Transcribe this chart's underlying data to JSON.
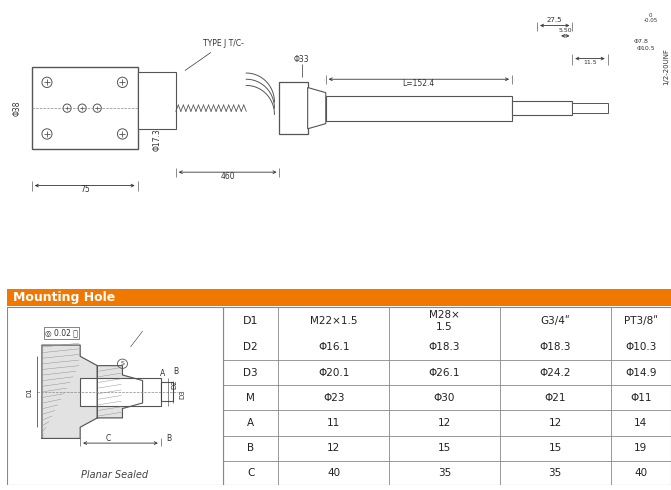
{
  "bg_color": "#ffffff",
  "header_color": "#f07800",
  "header_text": "Mounting Hole",
  "header_text_color": "#ffffff",
  "table_rows": [
    [
      "D1",
      "M22×1.5",
      "M28×\n1.5",
      "G3/4ʺ",
      "PT3/8ʺ"
    ],
    [
      "D2",
      "Φ16.1",
      "Φ18.3",
      "Φ18.3",
      "Φ10.3"
    ],
    [
      "D3",
      "Φ20.1",
      "Φ26.1",
      "Φ24.2",
      "Φ14.9"
    ],
    [
      "M",
      "Φ23",
      "Φ30",
      "Φ21",
      "Φ11"
    ],
    [
      "A",
      "11",
      "12",
      "12",
      "14"
    ],
    [
      "B",
      "12",
      "15",
      "15",
      "19"
    ],
    [
      "C",
      "40",
      "35",
      "35",
      "40"
    ]
  ],
  "line_color": "#555555",
  "dim_color": "#333333"
}
